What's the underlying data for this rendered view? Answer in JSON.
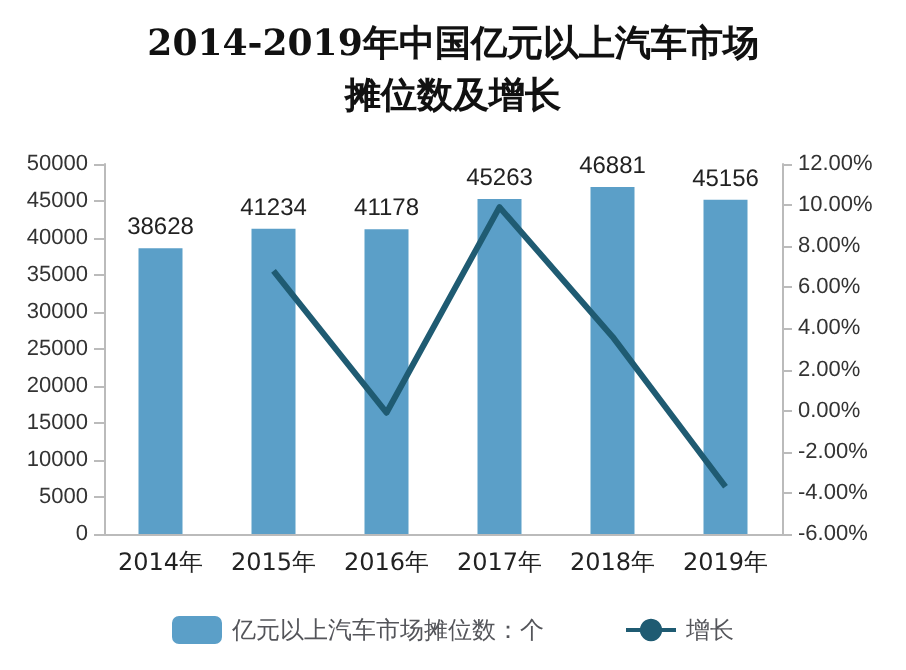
{
  "chart_data": {
    "type": "bar",
    "title": "2014-2019年中国亿元以上汽车市场摊位数及增长",
    "categories": [
      "2014年",
      "2015年",
      "2016年",
      "2017年",
      "2018年",
      "2019年"
    ],
    "series": [
      {
        "name": "亿元以上汽车市场摊位数：个",
        "color": "#5b9fc8",
        "values": [
          38628,
          41234,
          41178,
          45263,
          46881,
          45156
        ],
        "data_labels": true
      },
      {
        "name": "增长",
        "type": "line",
        "axis": "y2",
        "color": "#1f5b72",
        "values": [
          null,
          6.8,
          -0.1,
          9.9,
          3.6,
          -3.7
        ]
      }
    ],
    "ylim": [
      0,
      50000
    ],
    "yticks": [
      0,
      5000,
      10000,
      15000,
      20000,
      25000,
      30000,
      35000,
      40000,
      45000,
      50000
    ],
    "y2lim": [
      -6,
      12
    ],
    "y2ticks": [
      {
        "value": -6,
        "label": "-6.00%"
      },
      {
        "value": -4,
        "label": "-4.00%"
      },
      {
        "value": -2,
        "label": "-2.00%"
      },
      {
        "value": 0,
        "label": "0.00%"
      },
      {
        "value": 2,
        "label": "2.00%"
      },
      {
        "value": 4,
        "label": "4.00%"
      },
      {
        "value": 6,
        "label": "6.00%"
      },
      {
        "value": 8,
        "label": "8.00%"
      },
      {
        "value": 10,
        "label": "10.00%"
      },
      {
        "value": 12,
        "label": "12.00%"
      }
    ],
    "legend": "bottom",
    "marker": "none"
  }
}
